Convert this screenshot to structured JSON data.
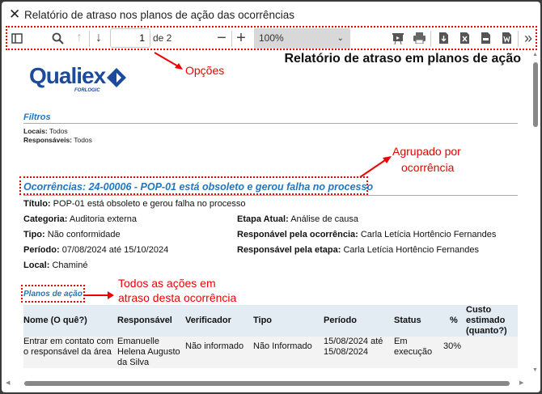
{
  "window": {
    "title": "Relatório de atraso nos planos de ação das ocorrências"
  },
  "toolbar": {
    "page_value": "1",
    "page_total": "de 2",
    "zoom": "100%",
    "icons": [
      "sidebar-toggle-icon",
      "search-icon",
      "arrow-up-icon",
      "arrow-down-icon",
      "minus-icon",
      "plus-icon",
      "presentation-icon",
      "print-icon",
      "download-icon",
      "excel-icon",
      "csv-icon",
      "word-icon",
      "chevron-double-right-icon"
    ]
  },
  "annotations": {
    "options": "Opções",
    "grouped_line1": "Agrupado por",
    "grouped_line2": "ocorrência",
    "actions_line1": "Todos as ações em",
    "actions_line2": "atraso desta ocorrência",
    "accent": "#e00000"
  },
  "report": {
    "header_title": "Relatório de atraso em planos de ação",
    "logo": {
      "name": "Qualiex",
      "sub": "FORLOGIC"
    },
    "filters": {
      "heading": "Filtros",
      "locais_label": "Locais:",
      "locais_value": "Todos",
      "resp_label": "Responsáveis:",
      "resp_value": "Todos"
    },
    "occurrence": {
      "heading": "Ocorrências: 24-00006 - POP-01 está obsoleto e gerou falha no processo",
      "titulo_label": "Título:",
      "titulo": "POP-01 está obsoleto e gerou falha no processo",
      "categoria_label": "Categoria:",
      "categoria": "Auditoria externa",
      "tipo_label": "Tipo:",
      "tipo": "Não conformidade",
      "periodo_label": "Período:",
      "periodo": "07/08/2024 até 15/10/2024",
      "local_label": "Local:",
      "local": "Chaminé",
      "etapa_label": "Etapa Atual:",
      "etapa": "Análise de causa",
      "resp_oc_label": "Responável pela ocorrência:",
      "resp_oc": "Carla Letícia Hortêncio Fernandes",
      "resp_et_label": "Responsável pela etapa:",
      "resp_et": "Carla Letícia Hortêncio Fernandes"
    },
    "plans": {
      "heading": "Planos de ação",
      "columns": [
        "Nome (O quê?)",
        "Responsável",
        "Verificador",
        "Tipo",
        "Período",
        "Status",
        "%",
        "Custo estimado (quanto?)"
      ],
      "rows": [
        [
          "Entrar em contato com o responsável da área",
          "Emanuelle Helena Augusto da Silva",
          "Não informado",
          "Não Informado",
          "15/08/2024 até 15/08/2024",
          "Em execução",
          "30%",
          ""
        ]
      ]
    }
  },
  "colors": {
    "heading_blue": "#1f77c2",
    "table_header_bg": "#e3ebf3",
    "row_bg": "#f3f3f3"
  }
}
